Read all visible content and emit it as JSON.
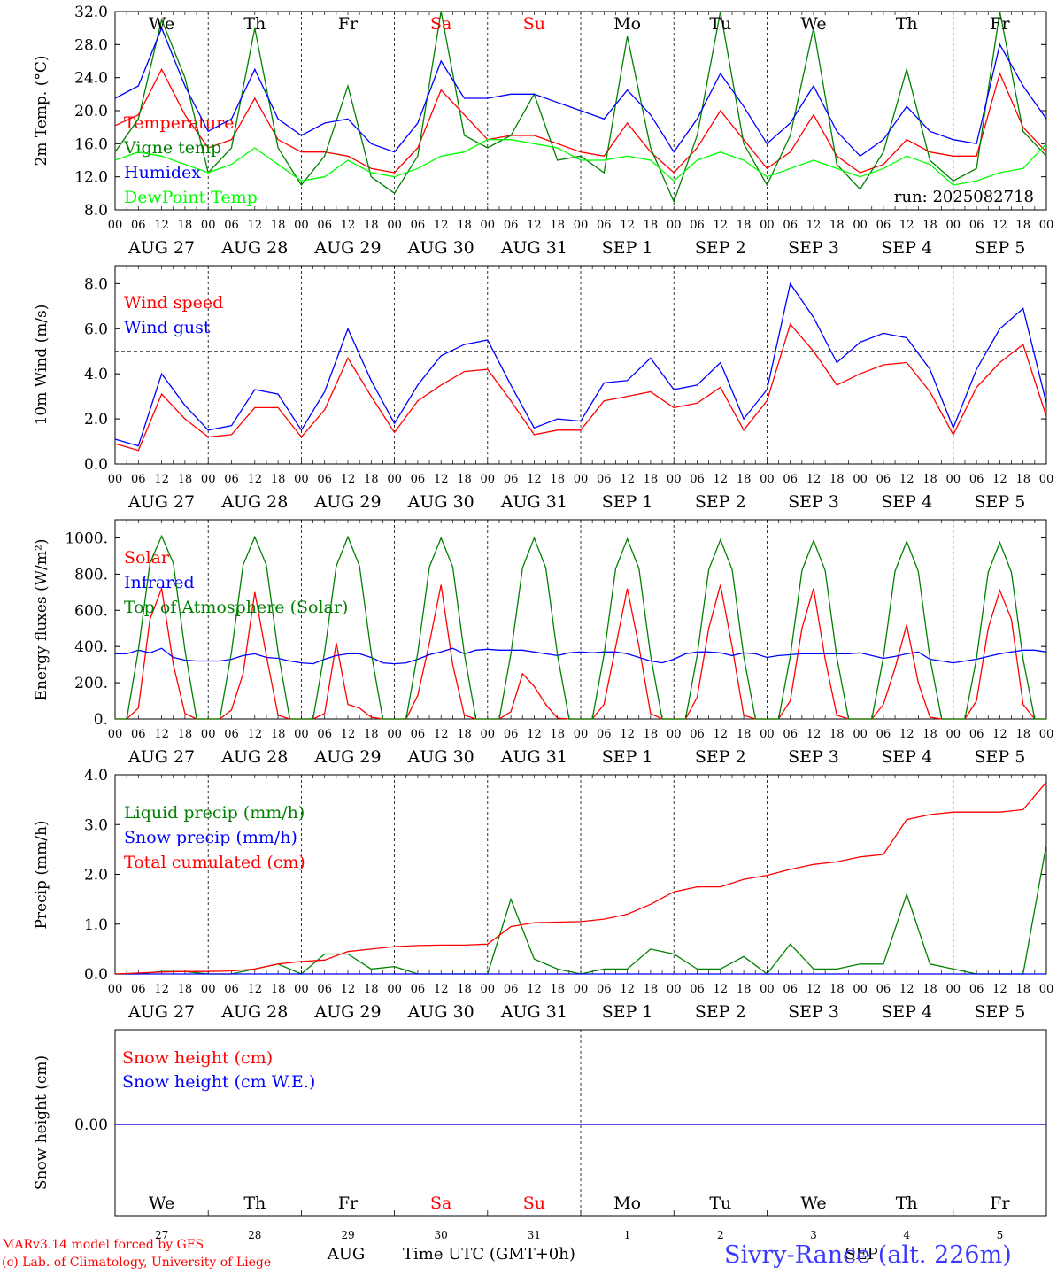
{
  "run_label": "run: 2025082718",
  "hour_ticks": [
    "00",
    "06",
    "12",
    "18"
  ],
  "day_labels": [
    "AUG 27",
    "AUG 28",
    "AUG 29",
    "AUG 30",
    "AUG 31",
    "SEP  1",
    "SEP  2",
    "SEP  3",
    "SEP  4",
    "SEP  5"
  ],
  "weekdays": [
    "We",
    "Th",
    "Fr",
    "Sa",
    "Su",
    "Mo",
    "Tu",
    "We",
    "Th",
    "Fr"
  ],
  "weekend_color": "#ff0000",
  "weekend_days": [
    "Sa",
    "Su"
  ],
  "day_numbers": [
    "27",
    "28",
    "29",
    "30",
    "31",
    "1",
    "2",
    "3",
    "4",
    "5"
  ],
  "month_labels": [
    "AUG",
    "SEP"
  ],
  "footer": {
    "model": "MARv3.14 model forced by GFS",
    "lab": "(c) Lab. of Climatology, University of Liege",
    "time_label": "Time UTC (GMT+0h)",
    "station": "Sivry-Rance (alt. 226m)"
  },
  "chart_data": [
    {
      "type": "line",
      "ylabel": "2m Temp. (°C)",
      "ylim": [
        8,
        32
      ],
      "yticks": [
        "8.0",
        "12.0",
        "16.0",
        "20.0",
        "24.0",
        "28.0",
        "32.0"
      ],
      "x_hours": [
        0,
        6,
        12,
        18,
        24,
        30,
        36,
        42,
        48,
        54,
        60,
        66,
        72,
        78,
        84,
        90,
        96,
        102,
        108,
        114,
        120,
        126,
        132,
        138,
        144,
        150,
        156,
        162,
        168,
        174,
        180,
        186,
        192,
        198,
        204,
        210,
        216,
        222,
        228,
        234,
        240
      ],
      "series": [
        {
          "name": "Temperature",
          "color": "#ff0000",
          "values": [
            18.2,
            19.5,
            25.0,
            19.5,
            15.5,
            16.5,
            21.5,
            16.5,
            15.0,
            15.0,
            14.5,
            13.0,
            12.5,
            15.5,
            22.5,
            19.5,
            16.5,
            17.0,
            17.0,
            16.0,
            15.0,
            14.5,
            18.5,
            15.0,
            12.5,
            15.5,
            20.0,
            16.5,
            13.0,
            15.0,
            19.5,
            14.5,
            12.5,
            13.5,
            16.5,
            15.0,
            14.5,
            14.5,
            24.5,
            18.0,
            15.0
          ]
        },
        {
          "name": "Vigne temp",
          "color": "#008000",
          "values": [
            15.0,
            19.0,
            31.0,
            24.0,
            12.5,
            15.5,
            30.0,
            15.5,
            11.0,
            14.5,
            23.0,
            12.0,
            10.0,
            14.5,
            32.0,
            17.0,
            15.5,
            17.0,
            22.0,
            14.0,
            14.5,
            12.5,
            29.0,
            15.5,
            9.0,
            17.0,
            32.0,
            16.0,
            11.0,
            17.0,
            30.0,
            13.5,
            10.5,
            15.0,
            25.0,
            14.0,
            11.5,
            13.0,
            32.0,
            17.5,
            14.5
          ]
        },
        {
          "name": "Humidex",
          "color": "#0000ff",
          "values": [
            21.5,
            23.0,
            30.0,
            23.0,
            17.5,
            19.0,
            25.0,
            19.0,
            17.0,
            18.5,
            19.0,
            16.0,
            15.0,
            18.5,
            26.0,
            21.5,
            21.5,
            22.0,
            22.0,
            21.0,
            20.0,
            19.0,
            22.5,
            19.5,
            15.0,
            19.0,
            24.5,
            20.5,
            16.0,
            18.5,
            23.0,
            17.5,
            14.5,
            16.5,
            20.5,
            17.5,
            16.5,
            16.0,
            28.0,
            23.0,
            19.0
          ]
        },
        {
          "name": "DewPoint Temp",
          "color": "#00ff00",
          "values": [
            14.0,
            15.0,
            14.5,
            13.5,
            12.5,
            13.5,
            15.5,
            13.5,
            11.5,
            12.0,
            14.0,
            12.5,
            12.0,
            13.0,
            14.5,
            15.0,
            16.5,
            16.5,
            16.0,
            15.5,
            14.0,
            14.0,
            14.5,
            14.0,
            11.5,
            14.0,
            15.0,
            14.0,
            12.0,
            13.0,
            14.0,
            13.0,
            12.0,
            13.0,
            14.5,
            13.5,
            11.0,
            11.5,
            12.5,
            13.0,
            16.0
          ]
        }
      ]
    },
    {
      "type": "line",
      "ylabel": "10m Wind (m/s)",
      "ylim": [
        0,
        8.8
      ],
      "yticks": [
        "0.0",
        "2.0",
        "4.0",
        "6.0",
        "8.0"
      ],
      "reference_line": 5,
      "x_hours": [
        0,
        6,
        12,
        18,
        24,
        30,
        36,
        42,
        48,
        54,
        60,
        66,
        72,
        78,
        84,
        90,
        96,
        102,
        108,
        114,
        120,
        126,
        132,
        138,
        144,
        150,
        156,
        162,
        168,
        174,
        180,
        186,
        192,
        198,
        204,
        210,
        216,
        222,
        228,
        234,
        240
      ],
      "series": [
        {
          "name": "Wind speed",
          "color": "#ff0000",
          "values": [
            0.9,
            0.6,
            3.1,
            2.0,
            1.2,
            1.3,
            2.5,
            2.5,
            1.2,
            2.4,
            4.7,
            3.0,
            1.4,
            2.8,
            3.5,
            4.1,
            4.2,
            2.8,
            1.3,
            1.5,
            1.5,
            2.8,
            3.0,
            3.2,
            2.5,
            2.7,
            3.4,
            1.5,
            2.8,
            6.2,
            5.0,
            3.5,
            4.0,
            4.4,
            4.5,
            3.2,
            1.3,
            3.4,
            4.5,
            5.3,
            2.1
          ]
        },
        {
          "name": "Wind gust",
          "color": "#0000ff",
          "values": [
            1.1,
            0.8,
            4.0,
            2.6,
            1.5,
            1.7,
            3.3,
            3.1,
            1.5,
            3.2,
            6.0,
            3.7,
            1.8,
            3.5,
            4.8,
            5.3,
            5.5,
            3.5,
            1.6,
            2.0,
            1.9,
            3.6,
            3.7,
            4.7,
            3.3,
            3.5,
            4.5,
            2.0,
            3.3,
            8.0,
            6.5,
            4.5,
            5.4,
            5.8,
            5.6,
            4.2,
            1.6,
            4.2,
            6.0,
            6.9,
            2.7
          ]
        }
      ]
    },
    {
      "type": "line",
      "ylabel": "Energy fluxes (W/m²)",
      "ylim": [
        0,
        1100
      ],
      "yticks": [
        "0.",
        "200.",
        "400.",
        "600.",
        "800.",
        "1000."
      ],
      "x_hours": [
        0,
        3,
        6,
        9,
        12,
        15,
        18,
        21,
        24,
        27,
        30,
        33,
        36,
        39,
        42,
        45,
        48,
        51,
        54,
        57,
        60,
        63,
        66,
        69,
        72,
        75,
        78,
        81,
        84,
        87,
        90,
        93,
        96,
        99,
        102,
        105,
        108,
        111,
        114,
        117,
        120,
        123,
        126,
        129,
        132,
        135,
        138,
        141,
        144,
        147,
        150,
        153,
        156,
        159,
        162,
        165,
        168,
        171,
        174,
        177,
        180,
        183,
        186,
        189,
        192,
        195,
        198,
        201,
        204,
        207,
        210,
        213,
        216,
        219,
        222,
        225,
        228,
        231,
        234,
        237,
        240
      ],
      "series": [
        {
          "name": "Solar",
          "color": "#ff0000",
          "values": [
            0,
            0,
            60,
            550,
            720,
            300,
            30,
            0,
            0,
            0,
            50,
            250,
            700,
            350,
            20,
            0,
            0,
            0,
            30,
            420,
            80,
            60,
            10,
            0,
            0,
            0,
            130,
            420,
            740,
            300,
            20,
            0,
            0,
            0,
            40,
            250,
            180,
            80,
            5,
            0,
            0,
            0,
            80,
            400,
            720,
            400,
            30,
            0,
            0,
            0,
            120,
            500,
            740,
            400,
            20,
            0,
            0,
            0,
            100,
            500,
            720,
            330,
            20,
            0,
            0,
            0,
            80,
            280,
            520,
            200,
            10,
            0,
            0,
            0,
            100,
            500,
            710,
            550,
            80,
            0,
            0
          ]
        },
        {
          "name": "Infrared",
          "color": "#0000ff",
          "values": [
            360,
            360,
            380,
            365,
            390,
            340,
            325,
            320,
            320,
            320,
            330,
            350,
            360,
            340,
            335,
            320,
            310,
            305,
            330,
            350,
            360,
            360,
            340,
            310,
            305,
            310,
            330,
            355,
            370,
            390,
            360,
            380,
            385,
            380,
            380,
            380,
            370,
            360,
            350,
            365,
            370,
            365,
            370,
            370,
            360,
            340,
            320,
            310,
            330,
            360,
            370,
            370,
            365,
            350,
            365,
            360,
            340,
            350,
            355,
            360,
            360,
            360,
            360,
            360,
            365,
            350,
            335,
            345,
            360,
            370,
            330,
            320,
            310,
            320,
            330,
            345,
            360,
            370,
            380,
            380,
            370
          ]
        },
        {
          "name": "Top of Atmosphere (Solar)",
          "color": "#008000",
          "values": [
            0,
            0,
            380,
            860,
            1010,
            860,
            380,
            0,
            0,
            0,
            370,
            850,
            1005,
            850,
            370,
            0,
            0,
            0,
            370,
            845,
            1005,
            845,
            365,
            0,
            0,
            0,
            365,
            840,
            1000,
            840,
            360,
            0,
            0,
            0,
            360,
            835,
            1000,
            835,
            355,
            0,
            0,
            0,
            355,
            830,
            995,
            830,
            350,
            0,
            0,
            0,
            350,
            825,
            990,
            825,
            345,
            0,
            0,
            0,
            345,
            820,
            985,
            820,
            340,
            0,
            0,
            0,
            340,
            815,
            980,
            815,
            335,
            0,
            0,
            0,
            335,
            810,
            975,
            810,
            330,
            0,
            0
          ]
        }
      ]
    },
    {
      "type": "line",
      "ylabel": "Precip (mm/h)",
      "ylim": [
        0,
        4
      ],
      "yticks": [
        "0.0",
        "1.0",
        "2.0",
        "3.0",
        "4.0"
      ],
      "x_hours": [
        0,
        6,
        12,
        18,
        24,
        30,
        36,
        42,
        48,
        54,
        60,
        66,
        72,
        78,
        84,
        90,
        96,
        102,
        108,
        114,
        120,
        126,
        132,
        138,
        144,
        150,
        156,
        162,
        168,
        174,
        180,
        186,
        192,
        198,
        204,
        210,
        216,
        222,
        228,
        234,
        240
      ],
      "series": [
        {
          "name": "Liquid precip (mm/h)",
          "color": "#008000",
          "values": [
            0,
            0,
            0.05,
            0.05,
            0,
            0,
            0.1,
            0.2,
            0,
            0.4,
            0.4,
            0.1,
            0.15,
            0,
            0,
            0,
            0,
            1.5,
            0.3,
            0.1,
            0,
            0.1,
            0.1,
            0.5,
            0.4,
            0.1,
            0.1,
            0.35,
            0,
            0.6,
            0.1,
            0.1,
            0.2,
            0.2,
            1.6,
            0.2,
            0.1,
            0,
            0,
            0,
            2.6
          ]
        },
        {
          "name": "Snow precip (mm/h)",
          "color": "#0000ff",
          "values": [
            0,
            0,
            0,
            0,
            0,
            0,
            0,
            0,
            0,
            0,
            0,
            0,
            0,
            0,
            0,
            0,
            0,
            0,
            0,
            0,
            0,
            0,
            0,
            0,
            0,
            0,
            0,
            0,
            0,
            0,
            0,
            0,
            0,
            0,
            0,
            0,
            0,
            0,
            0,
            0,
            0
          ]
        },
        {
          "name": "Total cumulated (cm)",
          "color": "#ff0000",
          "values": [
            0,
            0.02,
            0.04,
            0.05,
            0.05,
            0.06,
            0.1,
            0.2,
            0.25,
            0.28,
            0.45,
            0.5,
            0.55,
            0.57,
            0.58,
            0.58,
            0.6,
            0.95,
            1.03,
            1.04,
            1.05,
            1.1,
            1.2,
            1.4,
            1.65,
            1.75,
            1.75,
            1.9,
            1.98,
            2.1,
            2.2,
            2.25,
            2.35,
            2.4,
            3.1,
            3.2,
            3.25,
            3.25,
            3.25,
            3.3,
            3.85
          ]
        }
      ]
    },
    {
      "type": "line",
      "ylabel": "Snow height (cm)",
      "yticks": [
        "0.00"
      ],
      "x_hours": [
        0,
        240
      ],
      "series": [
        {
          "name": "Snow height (cm)",
          "color": "#ff0000",
          "values": [
            0,
            0
          ]
        },
        {
          "name": "Snow height (cm W.E.)",
          "color": "#0000ff",
          "values": [
            0,
            0
          ]
        }
      ]
    }
  ]
}
